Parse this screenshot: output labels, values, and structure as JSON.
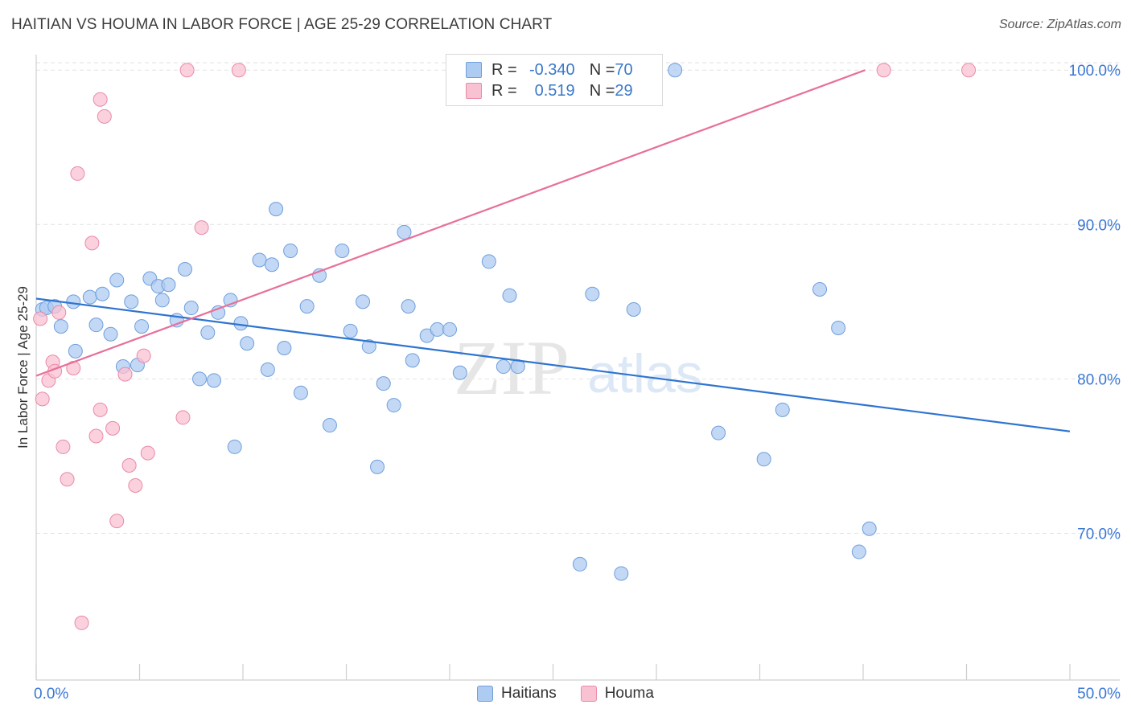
{
  "title": "HAITIAN VS HOUMA IN LABOR FORCE | AGE 25-29 CORRELATION CHART",
  "source": "Source: ZipAtlas.com",
  "watermark": {
    "zip": "ZIP",
    "atlas": "atlas"
  },
  "legend": {
    "rows": [
      {
        "r_label": "R = ",
        "r_value": "-0.340",
        "n_label": "N = ",
        "n_value": "70",
        "color": "#aecbf2",
        "border": "#6f9fdc"
      },
      {
        "r_label": "R = ",
        "r_value": "0.519",
        "n_label": "N = ",
        "n_value": "29",
        "color": "#f9c2d2",
        "border": "#e98aa8"
      }
    ]
  },
  "bottom_legend": [
    {
      "label": "Haitians",
      "color": "#aecbf2",
      "border": "#6f9fdc"
    },
    {
      "label": "Houma",
      "color": "#f9c2d2",
      "border": "#e98aa8"
    }
  ],
  "chart_data": {
    "type": "scatter",
    "title": "HAITIAN VS HOUMA IN LABOR FORCE | AGE 25-29 CORRELATION CHART",
    "xlabel": "",
    "ylabel": "In Labor Force | Age 25-29",
    "xlim": [
      0,
      50
    ],
    "ylim": [
      60.5,
      101
    ],
    "x_tick_labels": [
      "0.0%",
      "50.0%"
    ],
    "y_ticks": [
      70,
      80,
      90,
      100
    ],
    "y_tick_labels": [
      "70.0%",
      "80.0%",
      "90.0%",
      "100.0%"
    ],
    "grid": true,
    "colors": {
      "haitians": "#3a78d4",
      "houma": "#e8709a"
    },
    "series": [
      {
        "name": "Haitians",
        "color": "#aecbf2",
        "stroke": "#6f9fdc",
        "trend": {
          "x": [
            0,
            50
          ],
          "y": [
            85.2,
            76.6
          ],
          "color": "#2f74d0"
        },
        "points": [
          [
            0.3,
            84.5
          ],
          [
            0.5,
            84.6
          ],
          [
            0.9,
            84.7
          ],
          [
            1.2,
            83.4
          ],
          [
            1.8,
            85.0
          ],
          [
            1.9,
            81.8
          ],
          [
            2.6,
            85.3
          ],
          [
            2.9,
            83.5
          ],
          [
            3.2,
            85.5
          ],
          [
            3.6,
            82.9
          ],
          [
            3.9,
            86.4
          ],
          [
            4.2,
            80.8
          ],
          [
            4.6,
            85.0
          ],
          [
            4.9,
            80.9
          ],
          [
            5.1,
            83.4
          ],
          [
            5.5,
            86.5
          ],
          [
            5.9,
            86.0
          ],
          [
            6.1,
            85.1
          ],
          [
            6.4,
            86.1
          ],
          [
            6.8,
            83.8
          ],
          [
            7.2,
            87.1
          ],
          [
            7.5,
            84.6
          ],
          [
            7.9,
            80.0
          ],
          [
            8.3,
            83.0
          ],
          [
            8.6,
            79.9
          ],
          [
            8.8,
            84.3
          ],
          [
            9.4,
            85.1
          ],
          [
            9.6,
            75.6
          ],
          [
            9.9,
            83.6
          ],
          [
            10.2,
            82.3
          ],
          [
            10.8,
            87.7
          ],
          [
            11.2,
            80.6
          ],
          [
            11.4,
            87.4
          ],
          [
            11.6,
            91.0
          ],
          [
            12.0,
            82.0
          ],
          [
            12.3,
            88.3
          ],
          [
            12.8,
            79.1
          ],
          [
            13.1,
            84.7
          ],
          [
            13.7,
            86.7
          ],
          [
            14.2,
            77.0
          ],
          [
            14.8,
            88.3
          ],
          [
            15.2,
            83.1
          ],
          [
            15.8,
            85.0
          ],
          [
            16.1,
            82.1
          ],
          [
            16.5,
            74.3
          ],
          [
            16.8,
            79.7
          ],
          [
            17.3,
            78.3
          ],
          [
            17.8,
            89.5
          ],
          [
            18.0,
            84.7
          ],
          [
            18.2,
            81.2
          ],
          [
            18.9,
            82.8
          ],
          [
            19.4,
            83.2
          ],
          [
            20.0,
            83.2
          ],
          [
            20.5,
            80.4
          ],
          [
            21.9,
            87.6
          ],
          [
            22.6,
            80.8
          ],
          [
            22.9,
            85.4
          ],
          [
            23.3,
            80.8
          ],
          [
            26.3,
            68.0
          ],
          [
            26.9,
            85.5
          ],
          [
            28.3,
            67.4
          ],
          [
            28.9,
            84.5
          ],
          [
            30.9,
            100.0
          ],
          [
            33.0,
            76.5
          ],
          [
            35.2,
            74.8
          ],
          [
            36.1,
            78.0
          ],
          [
            37.9,
            85.8
          ],
          [
            38.8,
            83.3
          ],
          [
            39.8,
            68.8
          ],
          [
            40.3,
            70.3
          ]
        ]
      },
      {
        "name": "Houma",
        "color": "#f9c2d2",
        "stroke": "#e98aa8",
        "trend": {
          "x": [
            0,
            40.1
          ],
          "y": [
            80.2,
            100.0
          ],
          "color": "#e8709a"
        },
        "points": [
          [
            0.2,
            83.9
          ],
          [
            0.3,
            78.7
          ],
          [
            0.6,
            79.9
          ],
          [
            0.8,
            81.1
          ],
          [
            0.9,
            80.5
          ],
          [
            1.1,
            84.3
          ],
          [
            1.3,
            75.6
          ],
          [
            1.5,
            73.5
          ],
          [
            1.8,
            80.7
          ],
          [
            2.0,
            93.3
          ],
          [
            2.2,
            64.2
          ],
          [
            2.7,
            88.8
          ],
          [
            2.9,
            76.3
          ],
          [
            3.1,
            78.0
          ],
          [
            3.1,
            98.1
          ],
          [
            3.3,
            97.0
          ],
          [
            3.7,
            76.8
          ],
          [
            3.9,
            70.8
          ],
          [
            4.3,
            80.3
          ],
          [
            4.5,
            74.4
          ],
          [
            4.8,
            73.1
          ],
          [
            5.2,
            81.5
          ],
          [
            5.4,
            75.2
          ],
          [
            7.1,
            77.5
          ],
          [
            7.3,
            100.0
          ],
          [
            8.0,
            89.8
          ],
          [
            9.8,
            100.0
          ],
          [
            41.0,
            100.0
          ],
          [
            45.1,
            100.0
          ]
        ]
      }
    ]
  }
}
